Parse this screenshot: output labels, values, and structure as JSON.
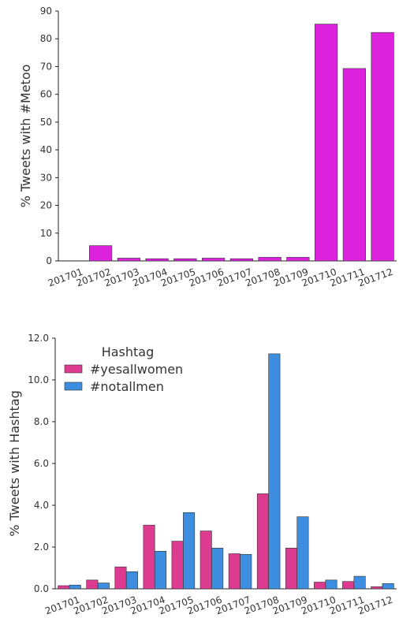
{
  "chart_data": [
    {
      "type": "bar",
      "categories": [
        "201701",
        "201702",
        "201703",
        "201704",
        "201705",
        "201706",
        "201707",
        "201708",
        "201709",
        "201710",
        "201711",
        "201712"
      ],
      "series": [
        {
          "values": [
            0.0,
            5.5,
            1.0,
            0.8,
            0.8,
            1.0,
            0.8,
            1.3,
            1.3,
            85.3,
            69.3,
            82.3
          ],
          "color": "#dd22dd"
        }
      ],
      "ylabel": "% Tweets with #Metoo",
      "xlabel": "",
      "ylim": [
        0,
        90
      ],
      "yticks": [
        "0",
        "10",
        "20",
        "30",
        "40",
        "50",
        "60",
        "70",
        "80",
        "90"
      ],
      "grid": false,
      "legend": null
    },
    {
      "type": "bar",
      "categories": [
        "201701",
        "201702",
        "201703",
        "201704",
        "201705",
        "201706",
        "201707",
        "201708",
        "201709",
        "201710",
        "201711",
        "201712"
      ],
      "series": [
        {
          "name": "#yesallwomen",
          "color": "#dd3b90",
          "values": [
            0.15,
            0.42,
            1.05,
            3.05,
            2.28,
            2.77,
            1.68,
            4.55,
            1.95,
            0.32,
            0.35,
            0.1
          ]
        },
        {
          "name": "#notallmen",
          "color": "#3d8ee0",
          "values": [
            0.18,
            0.28,
            0.82,
            1.8,
            3.65,
            1.95,
            1.65,
            11.25,
            3.45,
            0.42,
            0.6,
            0.25
          ]
        }
      ],
      "ylabel": "% Tweets with Hashtag",
      "xlabel": "",
      "ylim": [
        0,
        12
      ],
      "yticks": [
        "0.0",
        "2.0",
        "4.0",
        "6.0",
        "8.0",
        "10.0",
        "12.0"
      ],
      "grid": false,
      "legend": {
        "title": "Hashtag",
        "placement": "top-left"
      }
    }
  ]
}
